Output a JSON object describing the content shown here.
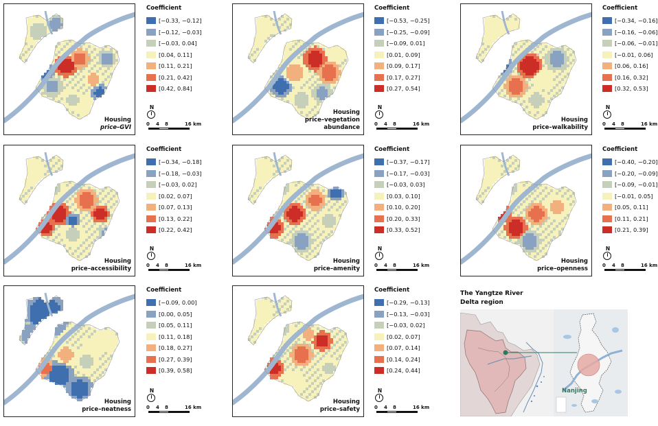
{
  "legend_title": "Coefficient",
  "scale_bar": {
    "north": "N",
    "ticks": [
      "0",
      "4",
      "8",
      "16 km"
    ]
  },
  "palette": [
    "#3f6fae",
    "#8aa2c2",
    "#c5cfb9",
    "#f7f1bb",
    "#f2b07e",
    "#e7714f",
    "#cd2d27"
  ],
  "river_color": "#9fb6d1",
  "panels": [
    {
      "id": "gvi",
      "title_line1": "Housing",
      "title_line2": "price–GVI",
      "italic_line2": true,
      "classes": [
        "[−0.33, −0.12]",
        "[−0.12, −0.03]",
        "[−0.03, 0.04]",
        "[0.04, 0.11]",
        "[0.11, 0.21]",
        "[0.21, 0.42]",
        "[0.42, 0.84]"
      ]
    },
    {
      "id": "vegetation",
      "title_line1": "Housing",
      "title_line2": "price–vegetation",
      "title_line3": "abundance",
      "italic_line2": false,
      "classes": [
        "[−0.53, −0.25]",
        "[−0.25, −0.09]",
        "[−0.09, 0.01]",
        "[0.01, 0.09]",
        "[0.09, 0.17]",
        "[0.17, 0.27]",
        "[0.27, 0.54]"
      ]
    },
    {
      "id": "walkability",
      "title_line1": "Housing",
      "title_line2": "price–walkability",
      "italic_line2": false,
      "classes": [
        "[−0.34, −0.16]",
        "[−0.16, −0.06]",
        "[−0.06, −0.01]",
        "[−0.01, 0.06]",
        "[0.06, 0.16]",
        "[0.16, 0.32]",
        "[0.32, 0.53]"
      ]
    },
    {
      "id": "accessibility",
      "title_line1": "Housing",
      "title_line2": "price–accessibility",
      "italic_line2": false,
      "classes": [
        "[−0.34, −0.18]",
        "[−0.18, −0.03]",
        "[−0.03, 0.02]",
        "[0.02, 0.07]",
        "[0.07, 0.13]",
        "[0.13, 0.22]",
        "[0.22, 0.42]"
      ]
    },
    {
      "id": "amenity",
      "title_line1": "Housing",
      "title_line2": "price–amenity",
      "italic_line2": false,
      "classes": [
        "[−0.37, −0.17]",
        "[−0.17, −0.03]",
        "[−0.03, 0.03]",
        "[0.03, 0.10]",
        "[0.10, 0.20]",
        "[0.20, 0.33]",
        "[0.33, 0.52]"
      ]
    },
    {
      "id": "openness",
      "title_line1": "Housing",
      "title_line2": "price–openness",
      "italic_line2": false,
      "classes": [
        "[−0.40, −0.20]",
        "[−0.20, −0.09]",
        "[−0.09, −0.01]",
        "[−0.01, 0.05]",
        "[0.05, 0.11]",
        "[0.11, 0.21]",
        "[0.21, 0.39]"
      ]
    },
    {
      "id": "neatness",
      "title_line1": "Housing",
      "title_line2": "price–neatness",
      "italic_line2": false,
      "classes": [
        "[−0.09, 0.00]",
        "[0.00, 0.05]",
        "[0.05, 0.11]",
        "[0.11, 0.18]",
        "[0.18, 0.27]",
        "[0.27, 0.39]",
        "[0.39, 0.58]"
      ]
    },
    {
      "id": "safety",
      "title_line1": "Housing",
      "title_line2": "price–safety",
      "italic_line2": false,
      "classes": [
        "[−0.29, −0.13]",
        "[−0.13, −0.03]",
        "[−0.03, 0.02]",
        "[0.02, 0.07]",
        "[0.07, 0.14]",
        "[0.14, 0.24]",
        "[0.24, 0.44]"
      ]
    }
  ],
  "inset": {
    "title_line1": "The Yangtze River",
    "title_line2": "Delta region",
    "city_label": "Nanjing",
    "region_fill": "#e2b9b9",
    "link_color": "#2b7a5e"
  }
}
